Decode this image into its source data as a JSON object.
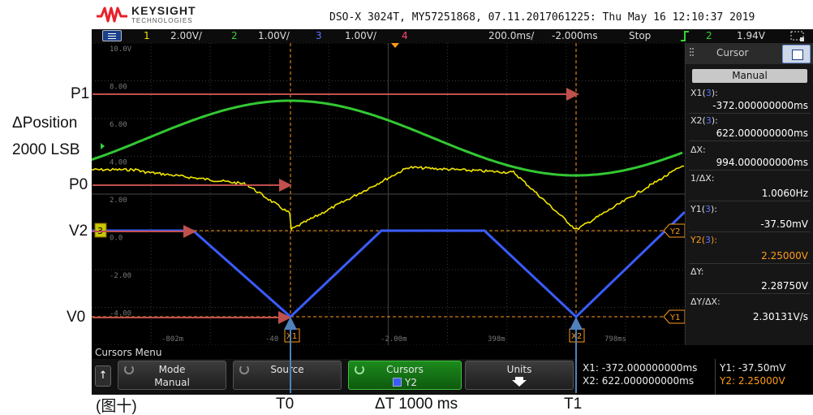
{
  "brand": {
    "name": "KEYSIGHT",
    "sub": "TECHNOLOGIES",
    "logo_color": "#e8202a"
  },
  "device_info": "DSO-X 3024T, MY57251868, 07.11.2017061225: Thu May 16 12:10:37 2019",
  "status": {
    "menu_icon": "menu-icon",
    "ch1_num": "1",
    "ch1_scale": "2.00V/",
    "ch2_num": "2",
    "ch2_scale": "1.00V/",
    "ch3_num": "3",
    "ch3_scale": "1.00V/",
    "ch4_num": "4",
    "timebase": "200.0ms/",
    "delay": "-2.000ms",
    "run_state": "Stop",
    "trig_icon": "trigger-edge-icon",
    "trig_channel": "2",
    "trig_level": "1.94V"
  },
  "grid": {
    "y_labels": [
      "10.0V",
      "8.00",
      "6.00",
      "4.00",
      "2.00",
      "0.0",
      "-2.00",
      "-4.00"
    ],
    "x_labels": [
      "-802m",
      "-40",
      "-2.00m",
      "398m",
      "798ms"
    ]
  },
  "markers": {
    "x1": "X1",
    "x2": "X2",
    "y1": "Y1",
    "y2": "Y2",
    "ch3_marker": "3"
  },
  "panel": {
    "title": "Cursor",
    "mode": "Manual",
    "x1_label": "X1(",
    "x1_ch": "3",
    "x1_value": "-372.000000000ms",
    "x2_label": "X2(",
    "x2_ch": "3",
    "x2_value": "622.000000000ms",
    "dx_label": "ΔX:",
    "dx_value": "994.000000000ms",
    "inv_dx_label": "1/ΔX:",
    "inv_dx_value": "1.0060Hz",
    "y1_label": "Y1(",
    "y1_ch": "3",
    "y1_value": "-37.50mV",
    "y2_label": "Y2(",
    "y2_ch": "3",
    "y2_value": "2.25000V",
    "dy_label": "ΔY:",
    "dy_value": "2.28750V",
    "dydx_label": "ΔY/ΔX:",
    "dydx_value": "2.30131V/s",
    "label_close": "):"
  },
  "softkeys": {
    "menu_title": "Cursors Menu",
    "back_icon": "↑",
    "mode": {
      "label": "Mode",
      "value": "Manual"
    },
    "source": {
      "label": "Source"
    },
    "cursors": {
      "label": "Cursors",
      "value": "Y2"
    },
    "units": {
      "label": "Units"
    }
  },
  "readout": {
    "x1": "X1: -372.000000000ms",
    "x2": "X2: 622.000000000ms",
    "y1": "Y1: -37.50mV",
    "y2": "Y2: 2.25000V"
  },
  "annotations": {
    "p1": "P1",
    "dpos_1": "ΔPosition",
    "dpos_2": "2000 LSB",
    "p0": "P0",
    "v2": "V2",
    "v0": "V0",
    "figure": "(图十)",
    "t0": "T0",
    "dt": "ΔT 1000 ms",
    "t1": "T1"
  },
  "colors": {
    "ch1": "#f2e600",
    "ch2": "#35d335",
    "ch3": "#3a5cff",
    "cursor": "#ff9a1a",
    "arrow": "#c0504d",
    "arrow_blue": "#4f81bd"
  }
}
